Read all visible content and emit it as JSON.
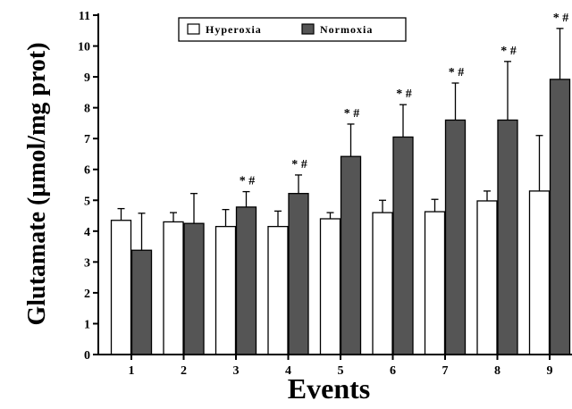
{
  "chart_data": {
    "type": "bar",
    "title": "",
    "xlabel": "Events",
    "ylabel": "Glutamate (μmol/mg prot)",
    "categories": [
      "1",
      "2",
      "3",
      "4",
      "5",
      "6",
      "7",
      "8",
      "9"
    ],
    "series": [
      {
        "name": "Hyperoxia",
        "color": "#ffffff",
        "values": [
          4.35,
          4.3,
          4.15,
          4.15,
          4.4,
          4.6,
          4.63,
          4.98,
          5.3
        ],
        "errors": [
          0.38,
          0.3,
          0.55,
          0.5,
          0.2,
          0.4,
          0.4,
          0.32,
          1.8
        ]
      },
      {
        "name": "Normoxia",
        "color": "#555555",
        "values": [
          3.38,
          4.25,
          4.78,
          5.22,
          6.42,
          7.05,
          7.6,
          7.6,
          8.92
        ],
        "errors": [
          1.2,
          0.97,
          0.5,
          0.6,
          1.05,
          1.05,
          1.2,
          1.9,
          1.65
        ]
      }
    ],
    "annotations": [
      {
        "category": "3",
        "text": "* #"
      },
      {
        "category": "4",
        "text": "* #"
      },
      {
        "category": "5",
        "text": "* #"
      },
      {
        "category": "6",
        "text": "* #"
      },
      {
        "category": "7",
        "text": "* #"
      },
      {
        "category": "8",
        "text": "* #"
      },
      {
        "category": "9",
        "text": "* #"
      }
    ],
    "ylim": [
      0,
      11
    ],
    "yticks": [
      "0",
      "1",
      "2",
      "3",
      "4",
      "5",
      "6",
      "7",
      "8",
      "9",
      "10",
      "11"
    ],
    "grid": false,
    "legend_position": "top-left"
  }
}
